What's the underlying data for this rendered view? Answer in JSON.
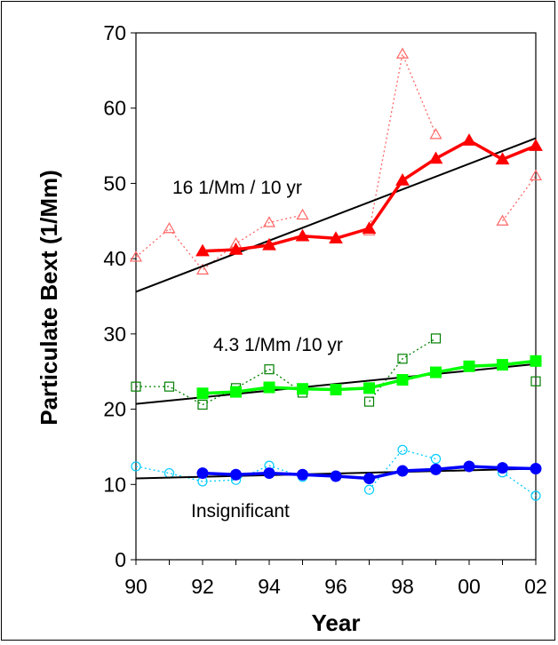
{
  "chart_data": {
    "type": "line",
    "title": "",
    "xlabel": "Year",
    "ylabel": "Particulate Bext (1/Mm)",
    "x": [
      1990,
      1991,
      1992,
      1993,
      1994,
      1995,
      1996,
      1997,
      1998,
      1999,
      2000,
      2001,
      2002
    ],
    "xtick_labels": [
      "90",
      "92",
      "94",
      "96",
      "98",
      "00",
      "02"
    ],
    "xlim": [
      1990,
      2002
    ],
    "ylim": [
      0,
      70
    ],
    "yticks": [
      0,
      10,
      20,
      30,
      40,
      50,
      60,
      70
    ],
    "grid": false,
    "legend": "none",
    "series": [
      {
        "group": "high",
        "style": "dotted-open-triangle",
        "color": "#ff6666",
        "x": [
          1990,
          1991,
          1992,
          1993,
          1994,
          1995,
          1997,
          1998,
          1999,
          2001,
          2002
        ],
        "values": [
          40.2,
          44.0,
          38.5,
          42.0,
          44.8,
          45.8,
          43.7,
          67.2,
          56.5,
          45.0,
          51.0
        ],
        "breaks_before": [
          1997,
          2001
        ]
      },
      {
        "group": "high",
        "style": "solid-filled-triangle",
        "color": "#ff0000",
        "x": [
          1992,
          1993,
          1994,
          1995,
          1996,
          1997,
          1998,
          1999,
          2000,
          2001,
          2002
        ],
        "values": [
          41.0,
          41.2,
          41.8,
          43.0,
          42.7,
          44.0,
          50.4,
          53.3,
          55.7,
          53.2,
          55.0
        ]
      },
      {
        "group": "mid",
        "style": "dotted-open-square",
        "color": "#008000",
        "x": [
          1990,
          1991,
          1992,
          1993,
          1994,
          1995,
          1997,
          1998,
          1999,
          2002
        ],
        "values": [
          23.0,
          23.0,
          20.6,
          22.8,
          25.3,
          22.2,
          21.0,
          26.7,
          29.4,
          23.7
        ],
        "breaks_before": [
          1997,
          2002
        ]
      },
      {
        "group": "mid",
        "style": "solid-filled-square",
        "color": "#00ff00",
        "x": [
          1992,
          1993,
          1994,
          1995,
          1996,
          1997,
          1998,
          1999,
          2000,
          2001,
          2002
        ],
        "values": [
          22.1,
          22.3,
          22.9,
          22.7,
          22.6,
          22.8,
          23.9,
          24.9,
          25.7,
          25.9,
          26.4
        ]
      },
      {
        "group": "low",
        "style": "dotted-open-circle",
        "color": "#00ccff",
        "x": [
          1990,
          1991,
          1992,
          1993,
          1994,
          1995,
          1997,
          1998,
          1999,
          2001,
          2002
        ],
        "values": [
          12.4,
          11.5,
          10.4,
          10.6,
          12.5,
          11.0,
          9.3,
          14.6,
          13.4,
          11.6,
          8.5
        ],
        "breaks_before": [
          1997,
          2001
        ]
      },
      {
        "group": "low",
        "style": "solid-filled-circle",
        "color": "#0000ff",
        "x": [
          1992,
          1993,
          1994,
          1995,
          1996,
          1997,
          1998,
          1999,
          2000,
          2001,
          2002
        ],
        "values": [
          11.5,
          11.3,
          11.5,
          11.3,
          11.1,
          10.8,
          11.8,
          12.0,
          12.4,
          12.2,
          12.1
        ]
      }
    ],
    "trendlines": [
      {
        "group": "high",
        "x": [
          1990,
          2002
        ],
        "values": [
          35.6,
          56.0
        ],
        "color": "#000000"
      },
      {
        "group": "mid",
        "x": [
          1990,
          2002
        ],
        "values": [
          20.7,
          26.0
        ],
        "color": "#000000"
      },
      {
        "group": "low",
        "x": [
          1990,
          2002
        ],
        "values": [
          10.8,
          12.1
        ],
        "color": "#000000"
      }
    ],
    "annotations": [
      {
        "text": "16 1/Mm / 10 yr",
        "near": "high"
      },
      {
        "text": "4.3 1/Mm /10 yr",
        "near": "mid"
      },
      {
        "text": "Insignificant",
        "near": "low"
      }
    ]
  }
}
